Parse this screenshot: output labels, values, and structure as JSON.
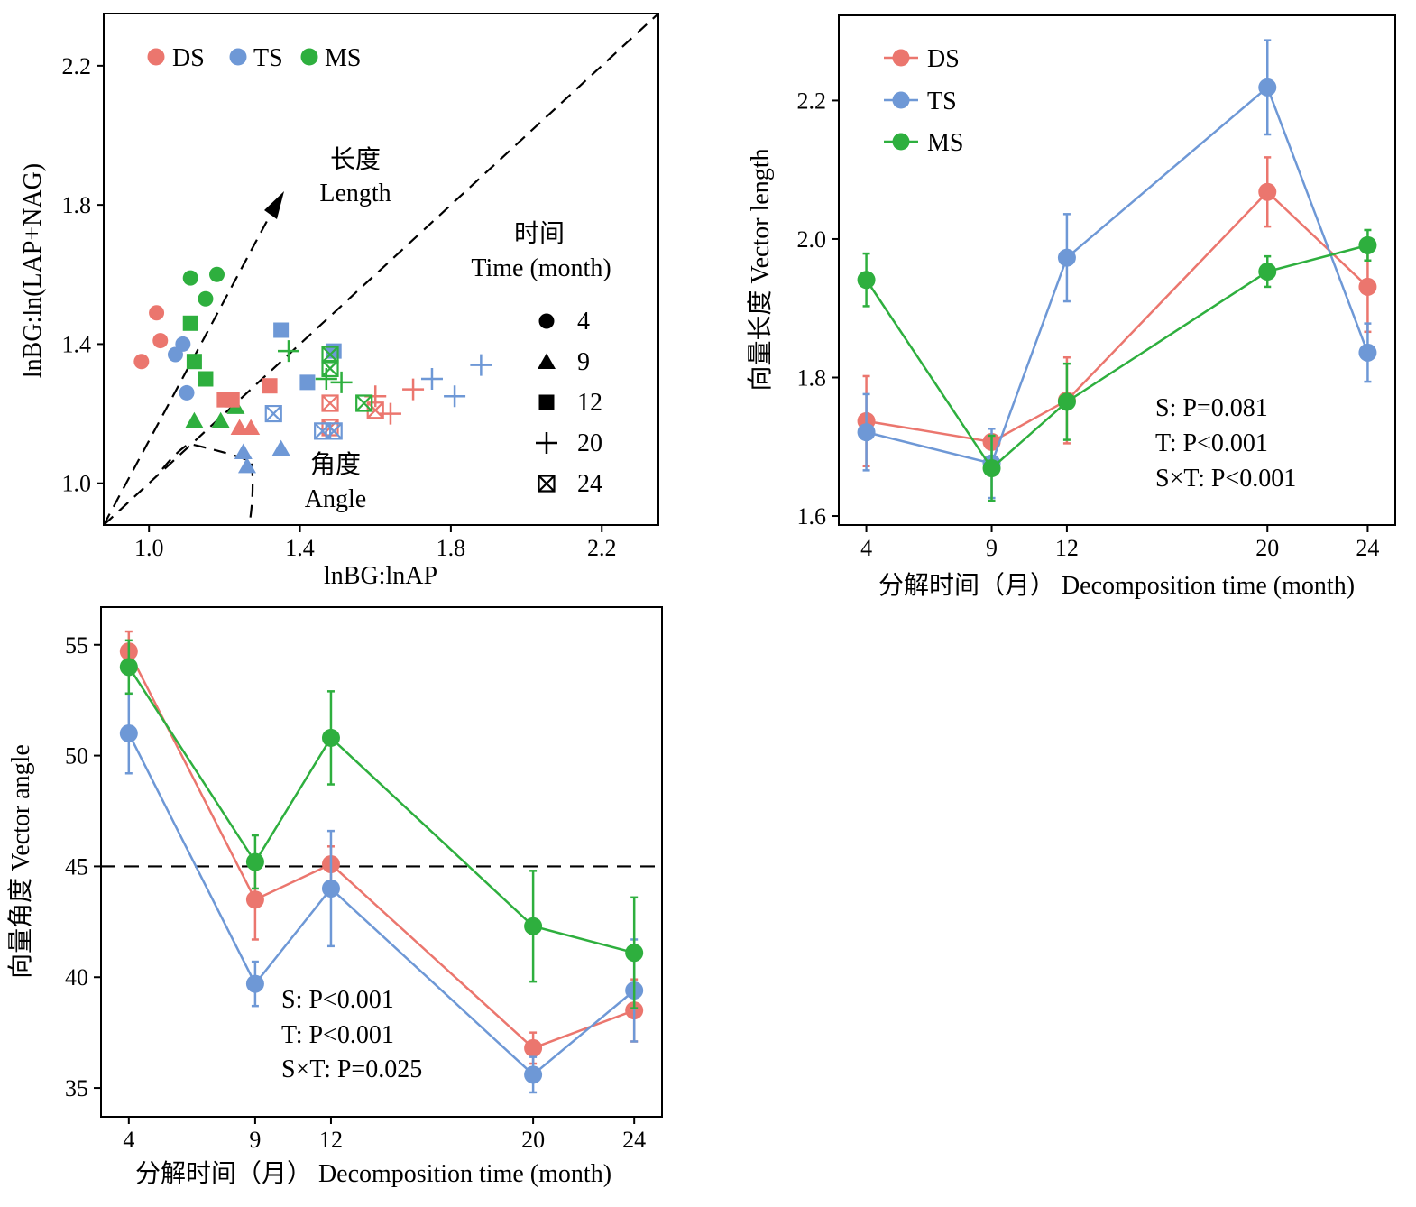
{
  "colors": {
    "DS": "#EB766E",
    "TS": "#6E98D6",
    "MS": "#2EAF3E"
  },
  "chart_data": [
    {
      "type": "scatter",
      "xlabel": "lnBG:lnAP",
      "ylabel": "lnBG:ln(LAP+NAG)",
      "xlim": [
        0.88,
        2.35
      ],
      "ylim": [
        0.88,
        2.35
      ],
      "xticks": [
        "1.0",
        "1.4",
        "1.8",
        "2.2"
      ],
      "yticks": [
        "1.0",
        "1.4",
        "1.8",
        "2.2"
      ],
      "legend": {
        "entries": [
          "DS",
          "TS",
          "MS"
        ],
        "placement": "top-left"
      },
      "annotations": {
        "length_cn": "长度",
        "length_en": "Length",
        "angle_cn": "角度",
        "angle_en": "Angle"
      },
      "time_legend": {
        "title_cn": "时间",
        "title_en": "Time (month)",
        "entries": [
          {
            "label": "4",
            "marker": "circle"
          },
          {
            "label": "9",
            "marker": "triangle"
          },
          {
            "label": "12",
            "marker": "square"
          },
          {
            "label": "20",
            "marker": "plus"
          },
          {
            "label": "24",
            "marker": "boxx"
          }
        ]
      },
      "reference_lines": [
        "y = x (1:1 line)"
      ],
      "points": [
        {
          "s": "DS",
          "m": "circle",
          "x": 1.02,
          "y": 1.49
        },
        {
          "s": "DS",
          "m": "circle",
          "x": 1.03,
          "y": 1.41
        },
        {
          "s": "DS",
          "m": "circle",
          "x": 0.98,
          "y": 1.35
        },
        {
          "s": "TS",
          "m": "circle",
          "x": 1.09,
          "y": 1.4
        },
        {
          "s": "TS",
          "m": "circle",
          "x": 1.07,
          "y": 1.37
        },
        {
          "s": "TS",
          "m": "circle",
          "x": 1.1,
          "y": 1.26
        },
        {
          "s": "MS",
          "m": "circle",
          "x": 1.11,
          "y": 1.59
        },
        {
          "s": "MS",
          "m": "circle",
          "x": 1.18,
          "y": 1.6
        },
        {
          "s": "MS",
          "m": "circle",
          "x": 1.15,
          "y": 1.53
        },
        {
          "s": "DS",
          "m": "triangle",
          "x": 1.24,
          "y": 1.16
        },
        {
          "s": "DS",
          "m": "triangle",
          "x": 1.27,
          "y": 1.16
        },
        {
          "s": "TS",
          "m": "triangle",
          "x": 1.25,
          "y": 1.09
        },
        {
          "s": "TS",
          "m": "triangle",
          "x": 1.26,
          "y": 1.05
        },
        {
          "s": "TS",
          "m": "triangle",
          "x": 1.35,
          "y": 1.1
        },
        {
          "s": "MS",
          "m": "triangle",
          "x": 1.12,
          "y": 1.18
        },
        {
          "s": "MS",
          "m": "triangle",
          "x": 1.19,
          "y": 1.18
        },
        {
          "s": "MS",
          "m": "triangle",
          "x": 1.23,
          "y": 1.22
        },
        {
          "s": "DS",
          "m": "square",
          "x": 1.2,
          "y": 1.24
        },
        {
          "s": "DS",
          "m": "square",
          "x": 1.32,
          "y": 1.28
        },
        {
          "s": "DS",
          "m": "square",
          "x": 1.22,
          "y": 1.24
        },
        {
          "s": "TS",
          "m": "square",
          "x": 1.35,
          "y": 1.44
        },
        {
          "s": "TS",
          "m": "square",
          "x": 1.49,
          "y": 1.38
        },
        {
          "s": "TS",
          "m": "square",
          "x": 1.42,
          "y": 1.29
        },
        {
          "s": "MS",
          "m": "square",
          "x": 1.11,
          "y": 1.46
        },
        {
          "s": "MS",
          "m": "square",
          "x": 1.12,
          "y": 1.35
        },
        {
          "s": "MS",
          "m": "square",
          "x": 1.15,
          "y": 1.3
        },
        {
          "s": "DS",
          "m": "plus",
          "x": 1.6,
          "y": 1.25
        },
        {
          "s": "DS",
          "m": "plus",
          "x": 1.64,
          "y": 1.2
        },
        {
          "s": "DS",
          "m": "plus",
          "x": 1.7,
          "y": 1.27
        },
        {
          "s": "TS",
          "m": "plus",
          "x": 1.75,
          "y": 1.3
        },
        {
          "s": "TS",
          "m": "plus",
          "x": 1.81,
          "y": 1.25
        },
        {
          "s": "TS",
          "m": "plus",
          "x": 1.88,
          "y": 1.34
        },
        {
          "s": "MS",
          "m": "plus",
          "x": 1.37,
          "y": 1.38
        },
        {
          "s": "MS",
          "m": "plus",
          "x": 1.47,
          "y": 1.3
        },
        {
          "s": "MS",
          "m": "plus",
          "x": 1.51,
          "y": 1.29
        },
        {
          "s": "DS",
          "m": "boxx",
          "x": 1.48,
          "y": 1.23
        },
        {
          "s": "DS",
          "m": "boxx",
          "x": 1.48,
          "y": 1.16
        },
        {
          "s": "DS",
          "m": "boxx",
          "x": 1.6,
          "y": 1.21
        },
        {
          "s": "TS",
          "m": "boxx",
          "x": 1.33,
          "y": 1.2
        },
        {
          "s": "TS",
          "m": "boxx",
          "x": 1.46,
          "y": 1.15
        },
        {
          "s": "TS",
          "m": "boxx",
          "x": 1.49,
          "y": 1.15
        },
        {
          "s": "MS",
          "m": "boxx",
          "x": 1.48,
          "y": 1.37
        },
        {
          "s": "MS",
          "m": "boxx",
          "x": 1.48,
          "y": 1.33
        },
        {
          "s": "MS",
          "m": "boxx",
          "x": 1.57,
          "y": 1.23
        }
      ]
    },
    {
      "type": "line",
      "xlabel": "分解时间（月） Decomposition time (month)",
      "ylabel": "向量长度 Vector length",
      "x": [
        4,
        9,
        12,
        20,
        24
      ],
      "xlim": [
        2.9,
        25.1
      ],
      "ylim": [
        1.587,
        2.323
      ],
      "yticks": [
        1.6,
        1.8,
        2.0,
        2.2
      ],
      "legend": {
        "placement": "top-left"
      },
      "series": [
        {
          "name": "DS",
          "values": [
            1.737,
            1.707,
            1.767,
            2.068,
            1.931
          ],
          "err": [
            0.065,
            0.008,
            0.062,
            0.05,
            0.065
          ]
        },
        {
          "name": "TS",
          "values": [
            1.721,
            1.676,
            1.973,
            2.219,
            1.836
          ],
          "err": [
            0.055,
            0.05,
            0.063,
            0.068,
            0.042
          ]
        },
        {
          "name": "MS",
          "values": [
            1.941,
            1.669,
            1.765,
            1.953,
            1.991
          ],
          "err": [
            0.038,
            0.047,
            0.055,
            0.022,
            0.022
          ]
        }
      ],
      "stats": [
        "S: P=0.081",
        "T: P<0.001",
        "S×T: P<0.001"
      ]
    },
    {
      "type": "line",
      "xlabel": "分解时间（月） Decomposition time (month)",
      "ylabel": "向量角度 Vector angle",
      "x": [
        4,
        9,
        12,
        20,
        24
      ],
      "xlim": [
        2.9,
        25.1
      ],
      "ylim": [
        33.7,
        56.7
      ],
      "yticks": [
        35,
        40,
        45,
        50,
        55
      ],
      "reference_lines": [
        "y = 45"
      ],
      "series": [
        {
          "name": "DS",
          "values": [
            54.7,
            43.5,
            45.1,
            36.8,
            38.5
          ],
          "err": [
            0.9,
            1.8,
            0.8,
            0.7,
            1.4
          ]
        },
        {
          "name": "TS",
          "values": [
            51.0,
            39.7,
            44.0,
            35.6,
            39.4
          ],
          "err": [
            1.8,
            1.0,
            2.6,
            0.8,
            2.3
          ]
        },
        {
          "name": "MS",
          "values": [
            54.0,
            45.2,
            50.8,
            42.3,
            41.1
          ],
          "err": [
            1.2,
            1.2,
            2.1,
            2.5,
            2.5
          ]
        }
      ],
      "stats": [
        "S: P<0.001",
        "T: P<0.001",
        "S×T: P=0.025"
      ]
    }
  ]
}
